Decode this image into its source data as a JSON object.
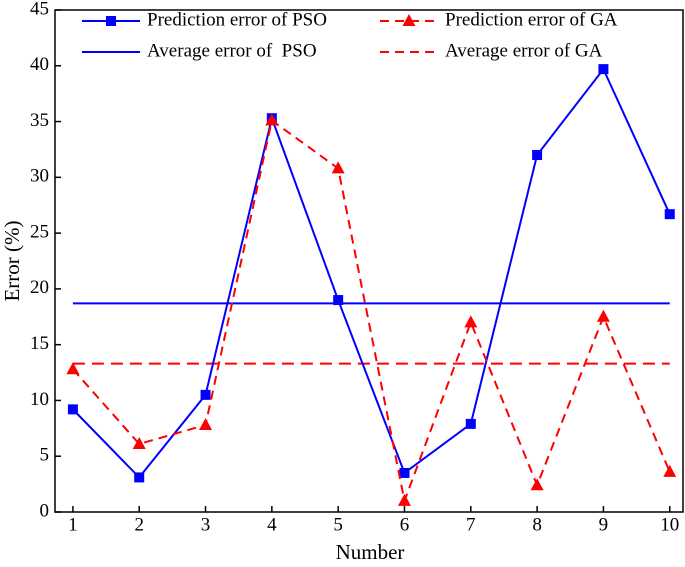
{
  "chart_data": {
    "type": "line",
    "x_label": "Number",
    "y_label": "Error (%)",
    "x": [
      1,
      2,
      3,
      4,
      5,
      6,
      7,
      8,
      9,
      10
    ],
    "series": [
      {
        "name": "Prediction error of PSO",
        "color": "#0000ff",
        "marker": "square",
        "dashed": false,
        "values": [
          9.2,
          3.1,
          10.5,
          35.3,
          19.0,
          3.5,
          7.9,
          32.0,
          39.7,
          26.7
        ]
      },
      {
        "name": "Prediction error of GA",
        "color": "#ff0000",
        "marker": "triangle",
        "dashed": true,
        "values": [
          12.8,
          6.1,
          7.8,
          35.1,
          30.8,
          1.0,
          17.0,
          2.4,
          17.5,
          3.6
        ]
      }
    ],
    "reference_lines": [
      {
        "name": "Average error of  PSO",
        "color": "#0000ff",
        "dashed": false,
        "value": 18.7
      },
      {
        "name": "Average error of GA",
        "color": "#ff0000",
        "dashed": true,
        "value": 13.3
      }
    ],
    "xlim": [
      0.73,
      10.2
    ],
    "xticks": [
      1,
      2,
      3,
      4,
      5,
      6,
      7,
      8,
      9,
      10
    ],
    "ylim": [
      0,
      45
    ],
    "yticks": [
      0,
      5,
      10,
      15,
      20,
      25,
      30,
      35,
      40,
      45
    ]
  }
}
